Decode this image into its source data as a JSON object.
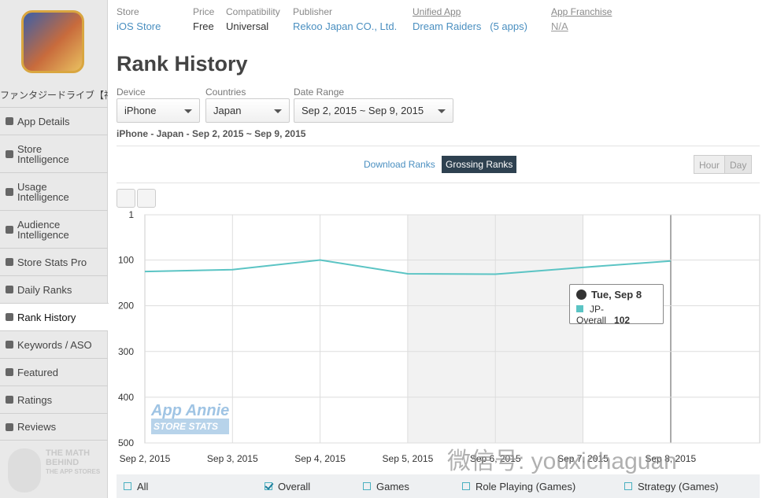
{
  "header": {
    "fields": [
      {
        "label": "Store",
        "value": "iOS Store"
      },
      {
        "label": "Price",
        "value": "Free"
      },
      {
        "label": "Compatibility",
        "value": "Universal"
      },
      {
        "label": "Publisher",
        "value": "Rekoo Japan CO., Ltd."
      },
      {
        "label": "Unified App",
        "value": "Dream Raiders",
        "extra": "(5 apps)"
      },
      {
        "label": "App Franchise",
        "value": "N/A"
      }
    ]
  },
  "sidebar": {
    "app_name": "ファンタジードライブ【神...",
    "items": [
      "App Details",
      "Store Intelligence",
      "Usage Intelligence",
      "Audience Intelligence",
      "Store Stats Pro",
      "Daily Ranks",
      "Rank History",
      "Keywords / ASO",
      "Featured",
      "Ratings",
      "Reviews"
    ],
    "logo": [
      "THE MATH",
      "BEHIND",
      "THE APP STORES"
    ]
  },
  "page": {
    "title": "Rank History",
    "filters": [
      {
        "label": "Device",
        "value": "iPhone"
      },
      {
        "label": "Countries",
        "value": "Japan"
      },
      {
        "label": "Date Range",
        "value": "Sep 2, 2015 ~ Sep 9, 2015"
      }
    ],
    "summary": "iPhone - Japan - Sep 2, 2015 ~ Sep 9, 2015",
    "tabs": [
      "Download Ranks",
      "Grossing Ranks"
    ],
    "granularity": [
      "Hour",
      "Day"
    ]
  },
  "chart_data": {
    "type": "line",
    "categories": [
      "Sep 2, 2015",
      "Sep 3, 2015",
      "Sep 4, 2015",
      "Sep 5, 2015",
      "Sep 6, 2015",
      "Sep 7, 2015",
      "Sep 8, 2015"
    ],
    "series": [
      {
        "name": "JP-Overall",
        "color": "#5bc4c4",
        "values": [
          125,
          121,
          100,
          130,
          131,
          116,
          102
        ]
      }
    ],
    "ylim": [
      1,
      500
    ],
    "yticks": [
      1,
      100,
      200,
      300,
      400,
      500
    ],
    "reversed": true,
    "grid": true,
    "tooltip": {
      "title": "Tue, Sep 8"
    },
    "watermark": [
      "App Annie",
      "STORE STATS"
    ]
  },
  "legend": [
    {
      "label": "All",
      "checked": false
    },
    {
      "label": "Overall",
      "checked": true
    },
    {
      "label": "Games",
      "checked": false
    },
    {
      "label": "Role Playing (Games)",
      "checked": false
    },
    {
      "label": "Strategy (Games)",
      "checked": false
    }
  ],
  "overlay_watermark": "微信号: youxichaguan"
}
